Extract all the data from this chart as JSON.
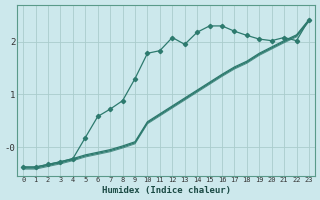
{
  "xlabel": "Humidex (Indice chaleur)",
  "bg_color": "#cce8ec",
  "grid_color": "#aacccc",
  "line_color": "#2d7a6e",
  "xlim": [
    -0.5,
    23.5
  ],
  "ylim": [
    -0.55,
    2.7
  ],
  "yticks": [
    0,
    1,
    2
  ],
  "ytick_labels": [
    "-0",
    "1",
    "2"
  ],
  "xticks": [
    0,
    1,
    2,
    3,
    4,
    5,
    6,
    7,
    8,
    9,
    10,
    11,
    12,
    13,
    14,
    15,
    16,
    17,
    18,
    19,
    20,
    21,
    22,
    23
  ],
  "wiggly_x": [
    0,
    1,
    2,
    3,
    4,
    5,
    6,
    7,
    8,
    9,
    10,
    11,
    12,
    13,
    14,
    15,
    16,
    17,
    18,
    19,
    20,
    21,
    22,
    23
  ],
  "wiggly_y": [
    -0.38,
    -0.38,
    -0.33,
    -0.28,
    -0.22,
    0.18,
    0.58,
    0.72,
    0.88,
    1.3,
    1.78,
    1.83,
    2.08,
    1.95,
    2.18,
    2.3,
    2.3,
    2.2,
    2.12,
    2.05,
    2.02,
    2.08,
    2.02,
    2.42
  ],
  "diag1_x": [
    0,
    1,
    2,
    3,
    4,
    5,
    6,
    7,
    8,
    9,
    10,
    11,
    12,
    13,
    14,
    15,
    16,
    17,
    18,
    19,
    20,
    21,
    22,
    23
  ],
  "diag1_y": [
    -0.38,
    -0.38,
    -0.33,
    -0.28,
    -0.22,
    -0.15,
    -0.1,
    -0.05,
    0.02,
    0.1,
    0.48,
    0.63,
    0.78,
    0.93,
    1.08,
    1.23,
    1.38,
    1.52,
    1.63,
    1.78,
    1.9,
    2.02,
    2.13,
    2.42
  ],
  "diag2_x": [
    0,
    1,
    2,
    3,
    4,
    5,
    6,
    7,
    8,
    9,
    10,
    11,
    12,
    13,
    14,
    15,
    16,
    17,
    18,
    19,
    20,
    21,
    22,
    23
  ],
  "diag2_y": [
    -0.4,
    -0.4,
    -0.35,
    -0.3,
    -0.24,
    -0.17,
    -0.12,
    -0.07,
    0.0,
    0.08,
    0.46,
    0.61,
    0.76,
    0.91,
    1.06,
    1.21,
    1.36,
    1.5,
    1.61,
    1.76,
    1.88,
    2.0,
    2.11,
    2.4
  ],
  "diag3_x": [
    0,
    1,
    2,
    3,
    4,
    5,
    6,
    7,
    8,
    9,
    10,
    11,
    12,
    13,
    14,
    15,
    16,
    17,
    18,
    19,
    20,
    21,
    22,
    23
  ],
  "diag3_y": [
    -0.42,
    -0.42,
    -0.37,
    -0.32,
    -0.26,
    -0.19,
    -0.14,
    -0.09,
    -0.02,
    0.06,
    0.44,
    0.59,
    0.74,
    0.89,
    1.04,
    1.19,
    1.34,
    1.48,
    1.59,
    1.74,
    1.86,
    1.98,
    2.09,
    2.38
  ]
}
